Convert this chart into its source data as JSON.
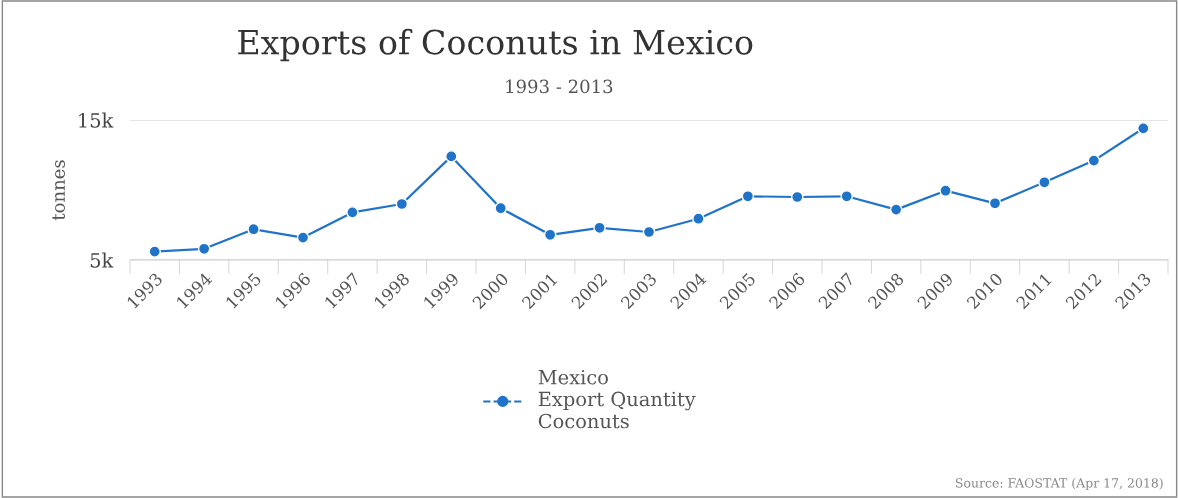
{
  "chart_data": {
    "type": "line",
    "title": "Exports of Coconuts in Mexico",
    "subtitle": "1993 - 2013",
    "ylabel": "tonnes",
    "categories": [
      "1993",
      "1994",
      "1995",
      "1996",
      "1997",
      "1998",
      "1999",
      "2000",
      "2001",
      "2002",
      "2003",
      "2004",
      "2005",
      "2006",
      "2007",
      "2008",
      "2009",
      "2010",
      "2011",
      "2012",
      "2013"
    ],
    "series": [
      {
        "name": "Mexico\nExport Quantity\nCoconuts",
        "color": "#1f73c9",
        "values": [
          5600,
          5800,
          7200,
          6600,
          8400,
          9000,
          12400,
          8700,
          6800,
          7300,
          7000,
          7950,
          9550,
          9500,
          9550,
          8600,
          9950,
          9050,
          10550,
          12100,
          14400
        ]
      }
    ],
    "ylim": [
      5000,
      15000
    ],
    "yticks": [
      {
        "value": 5000,
        "label": "5k"
      },
      {
        "value": 15000,
        "label": "15k"
      }
    ],
    "grid": "y",
    "legend": "bottom",
    "marker": "circle",
    "line_style": "solid",
    "annotations": [
      "Source: FAOSTAT (Apr 17, 2018)"
    ]
  }
}
